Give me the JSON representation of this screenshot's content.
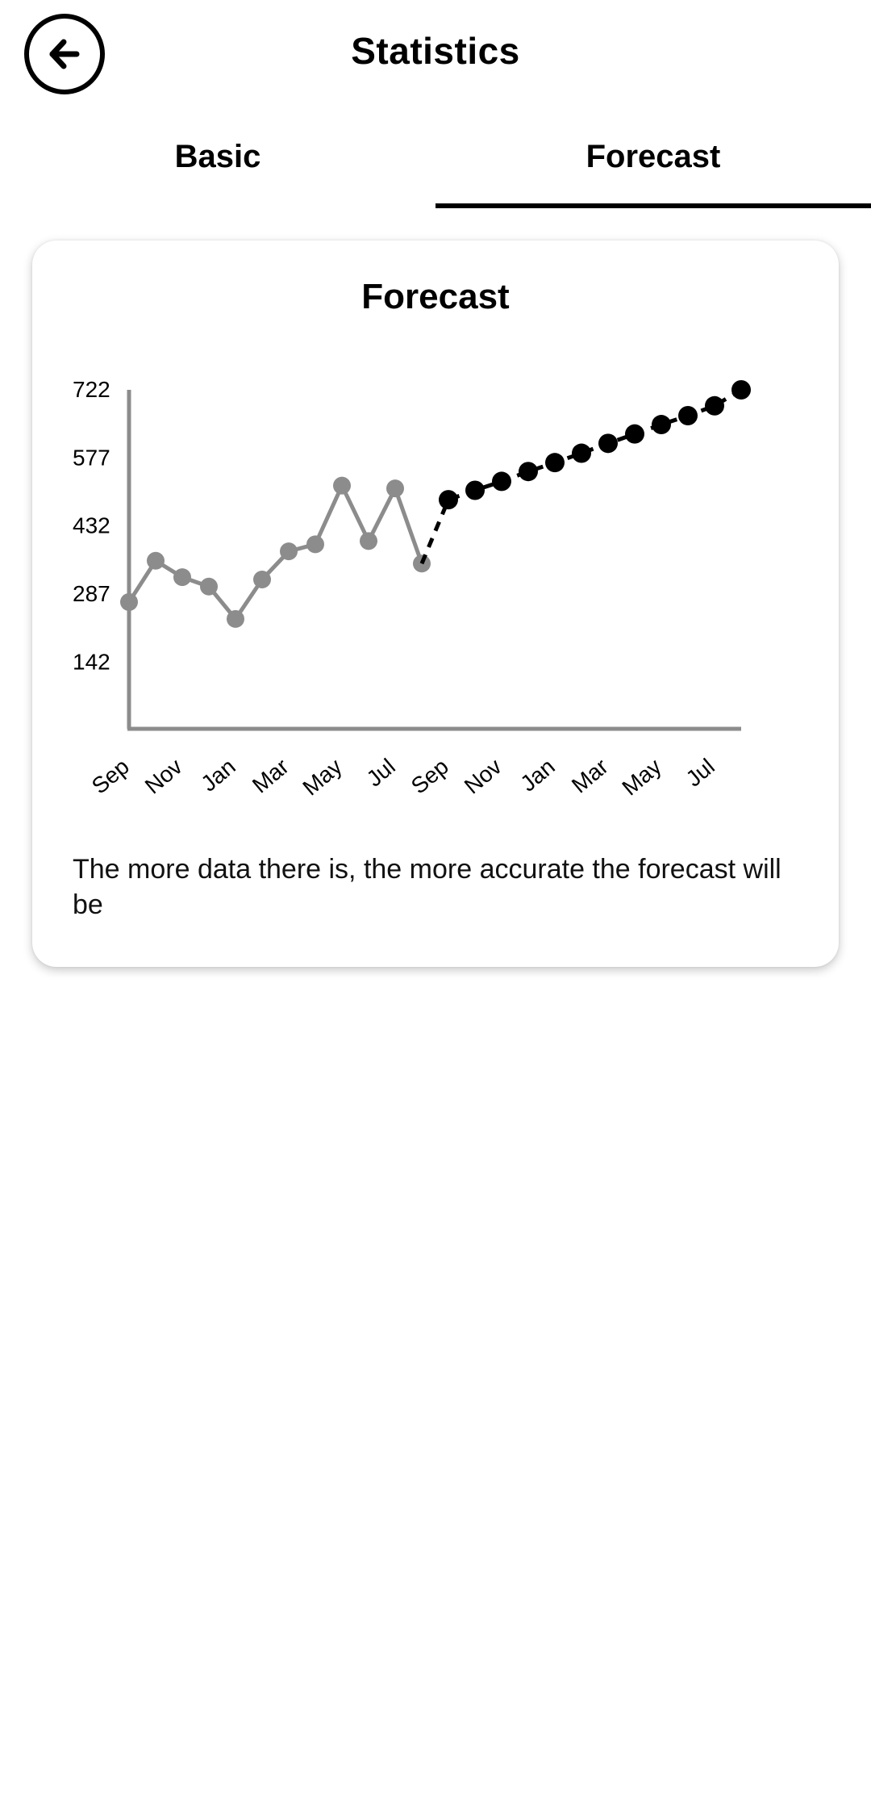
{
  "header": {
    "title": "Statistics",
    "back_icon": "arrow-left-icon"
  },
  "tabs": [
    {
      "label": "Basic",
      "active": false
    },
    {
      "label": "Forecast",
      "active": true
    }
  ],
  "card": {
    "title": "Forecast",
    "note": "The more data there is, the more accurate the forecast will be"
  },
  "colors": {
    "actual": "#8c8c8c",
    "forecast": "#000000",
    "axis": "#8c8c8c"
  },
  "chart_data": {
    "type": "line",
    "title": "Forecast",
    "xlabel": "",
    "ylabel": "",
    "y_ticks": [
      142,
      287,
      432,
      577,
      722
    ],
    "ylim": [
      0,
      722
    ],
    "x_tick_labels": [
      "Sep",
      "Nov",
      "Jan",
      "Mar",
      "May",
      "Jul",
      "Sep",
      "Nov",
      "Jan",
      "Mar",
      "May",
      "Jul"
    ],
    "grid": false,
    "legend": "none",
    "series": [
      {
        "style": "solid-gray",
        "x": [
          0,
          1,
          2,
          3,
          4,
          5,
          6,
          7,
          8,
          9,
          10,
          11
        ],
        "values": [
          270,
          358,
          323,
          303,
          234,
          318,
          378,
          393,
          518,
          400,
          512,
          352
        ]
      },
      {
        "style": "dashed-black",
        "x": [
          11,
          12,
          13,
          14,
          15,
          16,
          17,
          18,
          19,
          20,
          21,
          22,
          23
        ],
        "values": [
          352,
          488,
          508,
          527,
          548,
          567,
          587,
          608,
          628,
          648,
          667,
          688,
          722
        ]
      }
    ]
  }
}
